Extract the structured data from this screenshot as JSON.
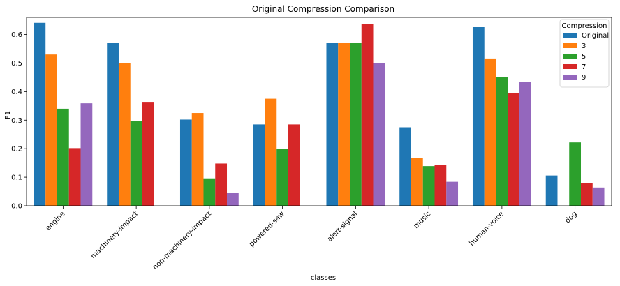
{
  "chart_data": {
    "type": "bar",
    "title": "Original Compression Comparison",
    "xlabel": "classes",
    "ylabel": "F1",
    "categories": [
      "engine",
      "machinery-impact",
      "non-machinery-impact",
      "powered-saw",
      "alert-signal",
      "music",
      "human-voice",
      "dog"
    ],
    "ylim": [
      0,
      0.66
    ],
    "yticks": [
      0.0,
      0.1,
      0.2,
      0.3,
      0.4,
      0.5,
      0.6
    ],
    "ytick_labels": [
      "0.0",
      "0.1",
      "0.2",
      "0.3",
      "0.4",
      "0.5",
      "0.6"
    ],
    "grid": false,
    "legend": {
      "title": "Compression",
      "placement": "top-right"
    },
    "series": [
      {
        "name": "Original",
        "color": "#1f77b4",
        "values": [
          0.641,
          0.57,
          0.302,
          0.285,
          0.57,
          0.275,
          0.627,
          0.106
        ]
      },
      {
        "name": "3",
        "color": "#ff7f0e",
        "values": [
          0.53,
          0.5,
          0.325,
          0.375,
          0.57,
          0.167,
          0.516,
          0.0
        ]
      },
      {
        "name": "5",
        "color": "#2ca02c",
        "values": [
          0.34,
          0.298,
          0.096,
          0.2,
          0.57,
          0.139,
          0.451,
          0.222
        ]
      },
      {
        "name": "7",
        "color": "#d62728",
        "values": [
          0.202,
          0.364,
          0.148,
          0.285,
          0.636,
          0.143,
          0.394,
          0.079
        ]
      },
      {
        "name": "9",
        "color": "#9467bd",
        "values": [
          0.359,
          0.0,
          0.046,
          0.0,
          0.5,
          0.084,
          0.435,
          0.064
        ]
      }
    ]
  }
}
